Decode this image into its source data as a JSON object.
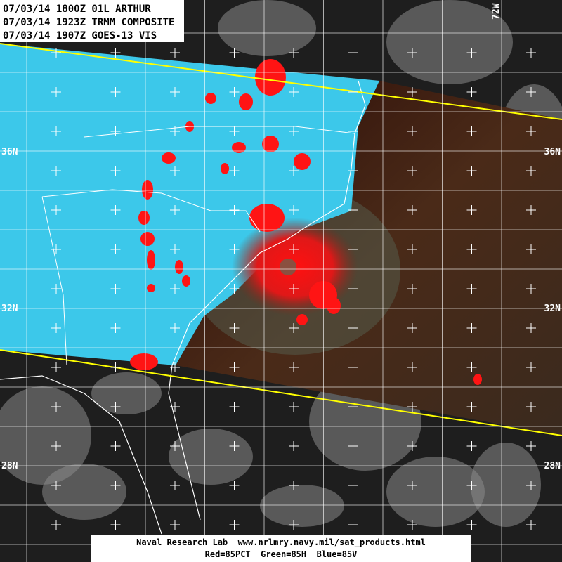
{
  "header": {
    "lines": [
      "07/03/14 1800Z 01L ARTHUR",
      "07/03/14 1923Z TRMM COMPOSITE",
      "07/03/14 1907Z GOES-13 VIS"
    ]
  },
  "map": {
    "left_lat_labels": [
      "36N",
      "32N",
      "28N"
    ],
    "right_lat_labels": [
      "36N",
      "32N",
      "28N"
    ],
    "lon_label": "72W"
  },
  "footer": {
    "lines": [
      "Naval Research Lab  www.nrlmry.navy.mil/sat_products.html",
      "Red=85PCT  Green=85H  Blue=85V"
    ]
  }
}
